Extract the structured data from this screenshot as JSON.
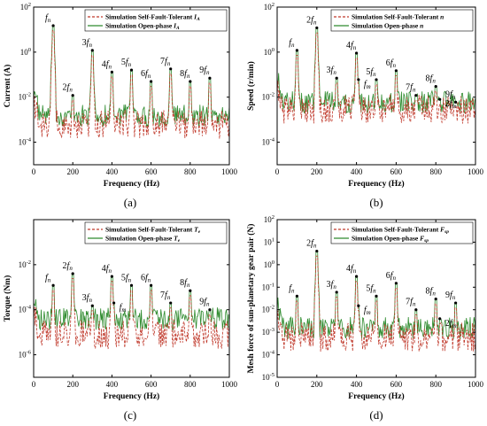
{
  "chart_data": [
    {
      "panel": "(a)",
      "type": "line",
      "xlabel": "Frequency (Hz)",
      "ylabel": "Current (A)",
      "xlim": [
        0,
        1000
      ],
      "ylim_log10": [
        -5,
        2
      ],
      "yscale": "log",
      "xticks": [
        "0",
        "200",
        "400",
        "600",
        "800",
        "1000"
      ],
      "yticks": [
        "10^-4",
        "10^-2",
        "10^0",
        "10^2"
      ],
      "legend": {
        "position": "top-right",
        "entries": [
          {
            "text": "Simulation Self-Fault-Tolerant",
            "symbol": "I_A",
            "style": "dashed",
            "color": "#c0392b"
          },
          {
            "text": "Simulation Open-phase",
            "symbol": "I_A",
            "style": "solid",
            "color": "#2e8b2e"
          }
        ]
      },
      "peaks": [
        {
          "label": "f_n",
          "x": 100,
          "y": 15
        },
        {
          "label": "2f_n",
          "x": 200,
          "y": 0.012
        },
        {
          "label": "3f_n",
          "x": 300,
          "y": 1.2
        },
        {
          "label": "4f_n",
          "x": 400,
          "y": 0.13
        },
        {
          "label": "5f_n",
          "x": 500,
          "y": 0.16
        },
        {
          "label": "6f_n",
          "x": 600,
          "y": 0.05
        },
        {
          "label": "7f_n",
          "x": 700,
          "y": 0.18
        },
        {
          "label": "8f_n",
          "x": 800,
          "y": 0.05
        },
        {
          "label": "9f_n",
          "x": 900,
          "y": 0.07
        }
      ],
      "baseline_open_phase": 0.0015,
      "baseline_self_fault": 0.0006
    },
    {
      "panel": "(b)",
      "type": "line",
      "xlabel": "Frequency (Hz)",
      "ylabel": "Speed (r/min)",
      "xlim": [
        0,
        1000
      ],
      "ylim_log10": [
        -5,
        2
      ],
      "yscale": "log",
      "xticks": [
        "0",
        "200",
        "400",
        "600",
        "800",
        "1000"
      ],
      "yticks": [
        "10^-4",
        "10^-2",
        "10^0",
        "10^2"
      ],
      "legend": {
        "position": "top-right",
        "entries": [
          {
            "text": "Simulation Self-Fault-Tolerant",
            "symbol": "n",
            "style": "dashed",
            "color": "#c0392b"
          },
          {
            "text": "Simulation Open-phase",
            "symbol": "n",
            "style": "solid",
            "color": "#2e8b2e"
          }
        ]
      },
      "peaks": [
        {
          "label": "f_n",
          "x": 100,
          "y": 1.2
        },
        {
          "label": "2f_n",
          "x": 200,
          "y": 12
        },
        {
          "label": "3f_n",
          "x": 300,
          "y": 0.07
        },
        {
          "label": "4f_n",
          "x": 400,
          "y": 0.9
        },
        {
          "label": "f_m",
          "x": 410,
          "y": 0.06
        },
        {
          "label": "5f_n",
          "x": 500,
          "y": 0.06
        },
        {
          "label": "6f_n",
          "x": 600,
          "y": 0.15
        },
        {
          "label": "7f_n",
          "x": 700,
          "y": 0.012
        },
        {
          "label": "8f_n",
          "x": 800,
          "y": 0.03
        },
        {
          "label": "2f_m",
          "x": 820,
          "y": 0.008
        },
        {
          "label": "9f_n",
          "x": 900,
          "y": 0.006
        }
      ],
      "baseline_open_phase": 0.006,
      "baseline_self_fault": 0.003
    },
    {
      "panel": "(c)",
      "type": "line",
      "xlabel": "Frequency (Hz)",
      "ylabel": "Torque (Nm)",
      "xlim": [
        0,
        1000
      ],
      "ylim_log10": [
        -7,
        0
      ],
      "yscale": "log",
      "xticks": [
        "0",
        "200",
        "400",
        "600",
        "800",
        "1000"
      ],
      "yticks": [
        "10^-6",
        "10^-4",
        "10^-2"
      ],
      "legend": {
        "position": "top-right",
        "entries": [
          {
            "text": "Simulation Self-Fault-Tolerant",
            "symbol": "T_e",
            "style": "dashed",
            "color": "#c0392b"
          },
          {
            "text": "Simulation Open-phase",
            "symbol": "T_e",
            "style": "solid",
            "color": "#2e8b2e"
          }
        ]
      },
      "peaks": [
        {
          "label": "f_n",
          "x": 100,
          "y": 0.0012
        },
        {
          "label": "2f_n",
          "x": 200,
          "y": 0.004
        },
        {
          "label": "3f_n",
          "x": 300,
          "y": 0.00015
        },
        {
          "label": "4f_n",
          "x": 400,
          "y": 0.003
        },
        {
          "label": "f_m",
          "x": 410,
          "y": 0.0002
        },
        {
          "label": "5f_n",
          "x": 500,
          "y": 0.0012
        },
        {
          "label": "6f_n",
          "x": 600,
          "y": 0.0012
        },
        {
          "label": "7f_n",
          "x": 700,
          "y": 0.0002
        },
        {
          "label": "8f_n",
          "x": 800,
          "y": 0.0007
        },
        {
          "label": "9f_n",
          "x": 900,
          "y": 0.0001
        }
      ],
      "baseline_open_phase": 4e-05,
      "baseline_self_fault": 8e-06
    },
    {
      "panel": "(d)",
      "type": "line",
      "xlabel": "Frequency (Hz)",
      "ylabel": "Mesh force of sun-planetary gear pair (N)",
      "xlim": [
        0,
        1000
      ],
      "ylim_log10": [
        -5,
        2
      ],
      "yscale": "log",
      "xticks": [
        "0",
        "200",
        "400",
        "600",
        "800",
        "1000"
      ],
      "yticks": [
        "10^-5",
        "10^-4",
        "10^-3",
        "10^-2",
        "10^-1",
        "10^0",
        "10^1",
        "10^2"
      ],
      "legend": {
        "position": "top-right",
        "entries": [
          {
            "text": "Simulation Self-Fault-Tolerant",
            "symbol": "F_sp",
            "style": "dashed",
            "color": "#c0392b"
          },
          {
            "text": "Simulation Open-phase",
            "symbol": "F_sp",
            "style": "solid",
            "color": "#2e8b2e"
          }
        ]
      },
      "peaks": [
        {
          "label": "f_n",
          "x": 100,
          "y": 0.04
        },
        {
          "label": "2f_n",
          "x": 200,
          "y": 4
        },
        {
          "label": "3f_n",
          "x": 300,
          "y": 0.06
        },
        {
          "label": "4f_n",
          "x": 400,
          "y": 0.3
        },
        {
          "label": "f_m",
          "x": 410,
          "y": 0.015
        },
        {
          "label": "5f_n",
          "x": 500,
          "y": 0.04
        },
        {
          "label": "6f_n",
          "x": 600,
          "y": 0.15
        },
        {
          "label": "7f_n",
          "x": 700,
          "y": 0.01
        },
        {
          "label": "8f_n",
          "x": 800,
          "y": 0.03
        },
        {
          "label": "2f_m",
          "x": 820,
          "y": 0.004
        },
        {
          "label": "9f_n",
          "x": 900,
          "y": 0.02
        }
      ],
      "baseline_open_phase": 0.0015,
      "baseline_self_fault": 0.0006
    }
  ],
  "colors": {
    "self_fault_tolerant": "#c0392b",
    "open_phase": "#2e8b2e"
  }
}
